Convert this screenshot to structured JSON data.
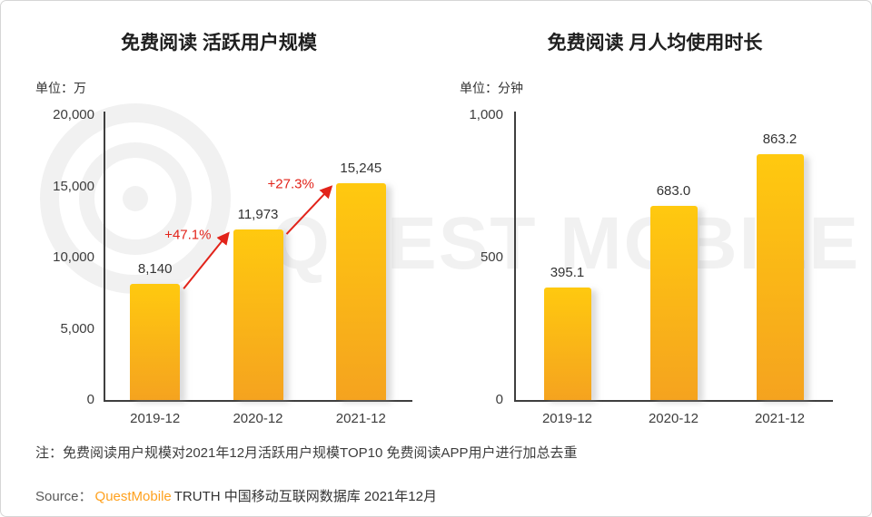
{
  "watermark": {
    "text": "QUEST MOBILE"
  },
  "chart_data": [
    {
      "type": "bar",
      "title": "免费阅读 活跃用户规模",
      "unit": "单位：万",
      "categories": [
        "2019-12",
        "2020-12",
        "2021-12"
      ],
      "values": [
        8140,
        11973,
        15245
      ],
      "value_labels": [
        "8,140",
        "11,973",
        "15,245"
      ],
      "ylim": [
        0,
        20000
      ],
      "yticks": [
        0,
        5000,
        10000,
        15000,
        20000
      ],
      "ytick_labels": [
        "0",
        "5,000",
        "10,000",
        "15,000",
        "20,000"
      ],
      "grid": false,
      "legend": "none",
      "annotations": [
        {
          "label": "+47.1%",
          "from_bar": 0,
          "to_bar": 1
        },
        {
          "label": "+27.3%",
          "from_bar": 1,
          "to_bar": 2
        }
      ]
    },
    {
      "type": "bar",
      "title": "免费阅读 月人均使用时长",
      "unit": "单位：分钟",
      "categories": [
        "2019-12",
        "2020-12",
        "2021-12"
      ],
      "values": [
        395.1,
        683.0,
        863.2
      ],
      "value_labels": [
        "395.1",
        "683.0",
        "863.2"
      ],
      "ylim": [
        0,
        1000
      ],
      "yticks": [
        0,
        500,
        1000
      ],
      "ytick_labels": [
        "0",
        "500",
        "1,000"
      ],
      "grid": false,
      "legend": "none",
      "annotations": []
    }
  ],
  "footer": {
    "note": "注：免费阅读用户规模对2021年12月活跃用户规模TOP10 免费阅读APP用户进行加总去重",
    "source_label": "Source：",
    "source_brand": "QuestMobile",
    "source_suffix": "TRUTH 中国移动互联网数据库 2021年12月"
  },
  "colors": {
    "bar_top": "#FFC90F",
    "bar_bottom": "#F5A31F",
    "annotation_red": "#E2231A",
    "brand_orange": "#FFA11E",
    "axis": "#3f3f3f",
    "text": "#333333",
    "watermark": "#f1f1f1"
  }
}
